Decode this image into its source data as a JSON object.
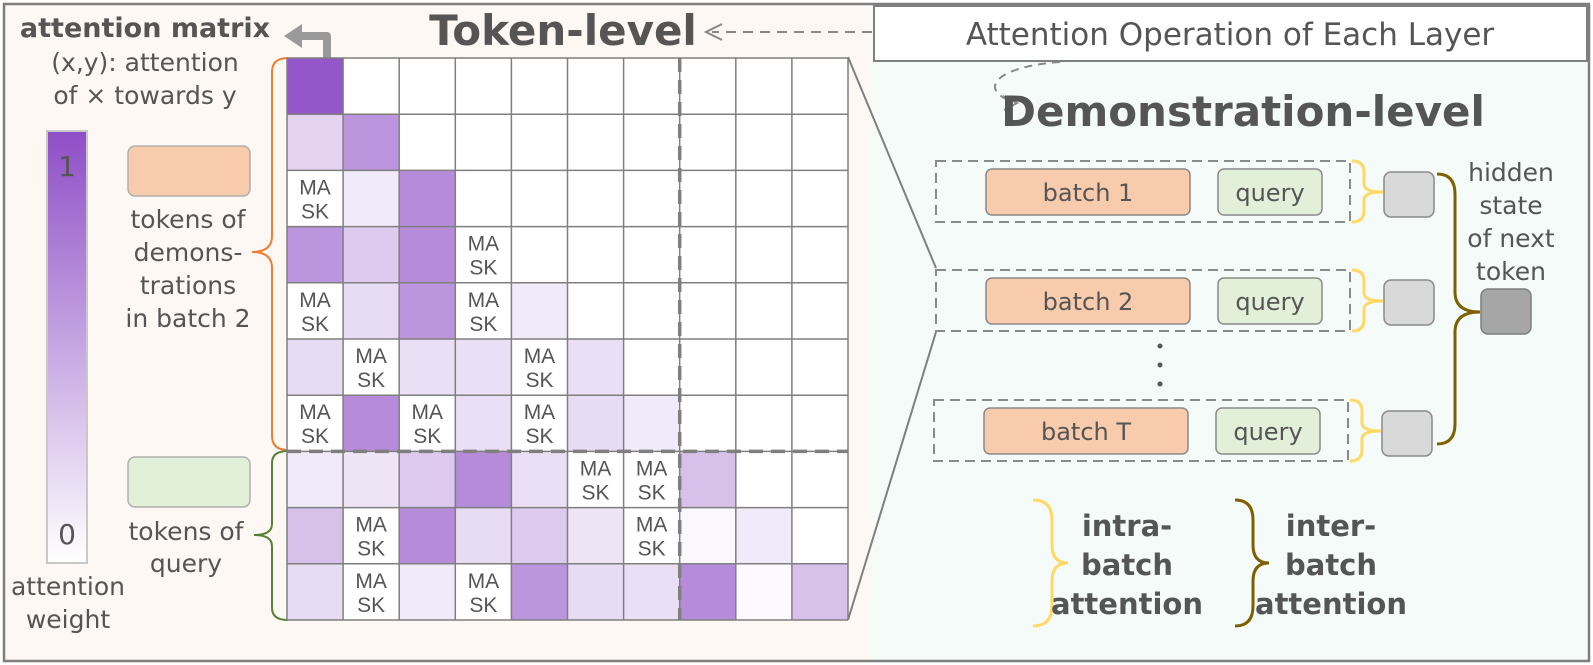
{
  "left_panel": {
    "title": "attention matrix",
    "subtitle_line1": "(x,y): attention",
    "subtitle_line2": "of × towards y",
    "colorbar_max": "1",
    "colorbar_min": "0",
    "colorbar_label_line1": "attention",
    "colorbar_label_line2": "weight",
    "legend_demo_lines": [
      "tokens of",
      "demons-",
      "trations",
      "in batch 2"
    ],
    "legend_query_lines": [
      "tokens of",
      "query"
    ],
    "token_level_title": "Token-level",
    "mask_line1": "MA",
    "mask_line2": "SK"
  },
  "matrix": {
    "rows": 10,
    "cols": 10,
    "demo_rows": 7,
    "levels": [
      [
        0.95,
        0,
        0,
        0,
        0,
        0,
        0,
        0,
        0,
        0
      ],
      [
        0.25,
        0.6,
        0,
        0,
        0,
        0,
        0,
        0,
        0,
        0
      ],
      [
        -1,
        0.12,
        0.65,
        0,
        0,
        0,
        0,
        0,
        0,
        0
      ],
      [
        0.6,
        0.3,
        0.65,
        -1,
        0,
        0,
        0,
        0,
        0,
        0
      ],
      [
        -1,
        0.2,
        0.6,
        -1,
        0.12,
        0,
        0,
        0,
        0,
        0
      ],
      [
        0.2,
        -1,
        0.18,
        0.18,
        -1,
        0.18,
        0,
        0,
        0,
        0
      ],
      [
        -1,
        0.65,
        -1,
        0.18,
        -1,
        0.2,
        0.12,
        0,
        0,
        0
      ],
      [
        0.12,
        0.15,
        0.3,
        0.65,
        0.18,
        -1,
        -1,
        0.35,
        0,
        0
      ],
      [
        0.35,
        -1,
        0.65,
        0.2,
        0.3,
        0.15,
        -1,
        0.04,
        0.12,
        0
      ],
      [
        0.2,
        -1,
        0.12,
        -1,
        0.6,
        0.2,
        0.18,
        0.65,
        0.03,
        0.35
      ]
    ]
  },
  "right_panel": {
    "header": "Attention Operation of Each Layer",
    "demo_level_title": "Demonstration-level",
    "batches": [
      {
        "label": "batch 1",
        "query": "query"
      },
      {
        "label": "batch 2",
        "query": "query"
      },
      {
        "label": "batch T",
        "query": "query"
      }
    ],
    "hidden_state_lines": [
      "hidden",
      "state",
      "of next",
      "token"
    ],
    "intra_lines": [
      "intra-",
      "batch",
      "attention"
    ],
    "inter_lines": [
      "inter-",
      "batch",
      "attention"
    ]
  },
  "colors": {
    "demo_token": "#f8cbad",
    "query_token": "#e2efd9",
    "purple_max": "#8e4ec6",
    "intra_brace": "#ffd966",
    "inter_brace": "#7f6000",
    "orange_brace": "#ed7d31",
    "green_brace": "#548235"
  }
}
